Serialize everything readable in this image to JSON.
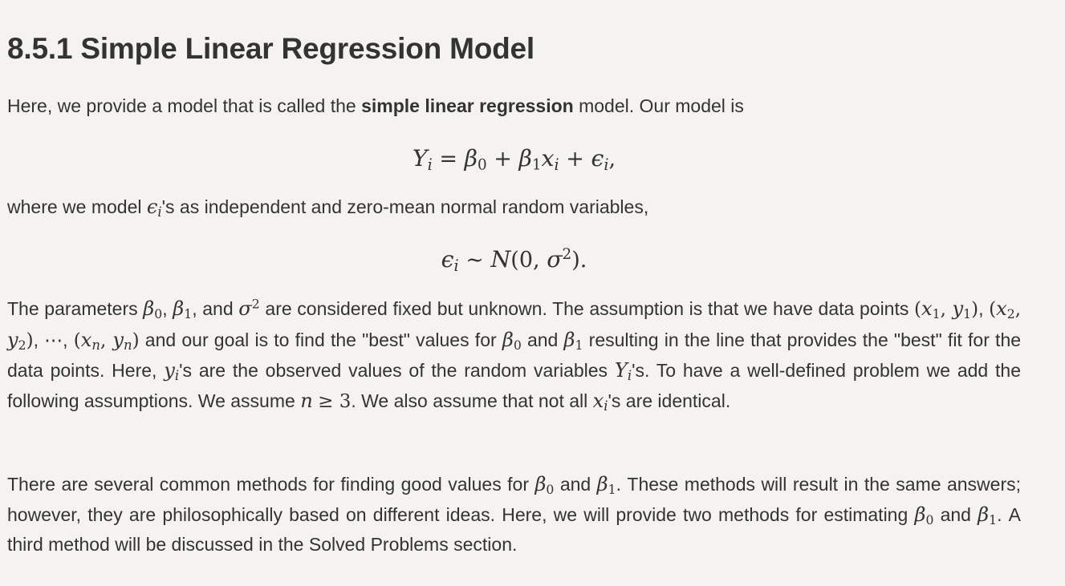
{
  "section": {
    "heading": "8.5.1 Simple Linear Regression Model"
  },
  "intro": {
    "before_bold": "Here, we provide a model that is called the ",
    "bold_term": "simple linear regression",
    "after_bold": " model. Our model is"
  },
  "equation_model": "Yi = β0 + β1xi + εi,",
  "errors": {
    "before": "where we model ",
    "after": "'s as independent and zero-mean normal random variables,"
  },
  "equation_errors": "εi ~ N(0, σ2).",
  "params": {
    "t1": "The parameters ",
    "t2": ", ",
    "t3": ", and ",
    "t4": " are considered fixed but unknown. The assumption is that we have data points ",
    "t5": ", ",
    "t6": ", ",
    "t7": ", ",
    "t8": " and our goal is to find the \"best\" values for ",
    "t9": " and ",
    "t10": " resulting in the line that provides the \"best\" fit for the data points. Here, ",
    "t11": "'s are the observed values of the random variables ",
    "t12": "'s. To have a well-defined problem we add the following assumptions. We assume ",
    "t13": ". We also assume that not all ",
    "t14": "'s are identical."
  },
  "methods": {
    "t1": "There are several common methods for finding good values for ",
    "t2": " and ",
    "t3": ". These methods will result in the same answers; however, they are philosophically based on different ideas. Here, we will provide two methods for estimating ",
    "t4": " and ",
    "t5": ". A third method will be discussed in the Solved Problems section."
  }
}
